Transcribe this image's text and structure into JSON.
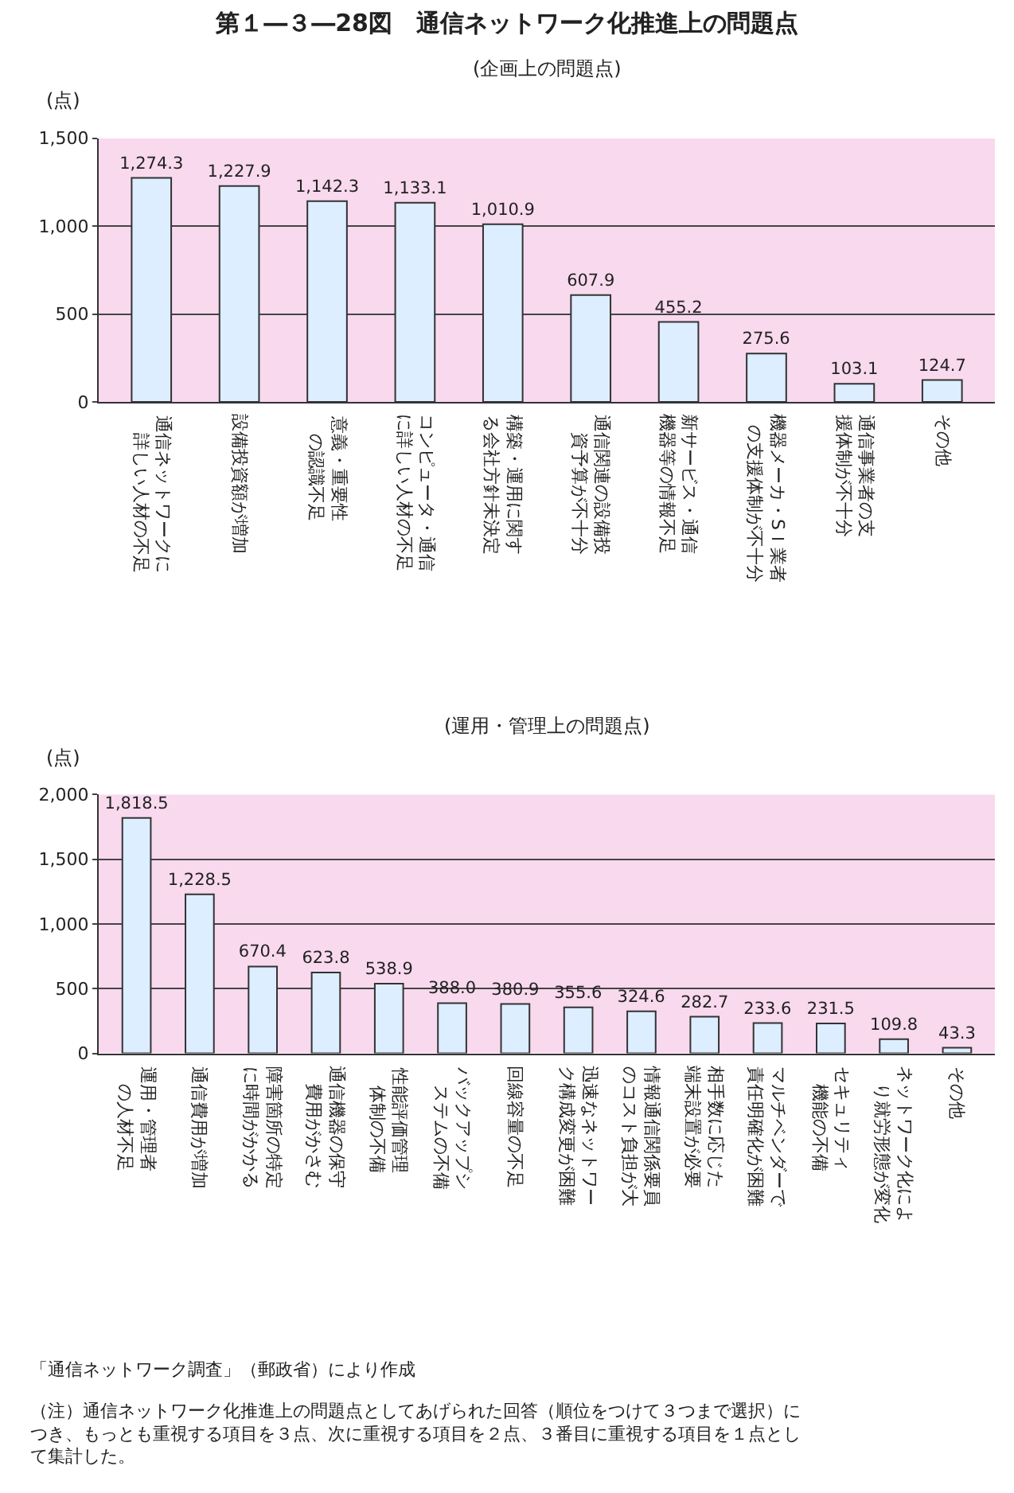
{
  "chart_data": [
    {
      "type": "bar",
      "title": "第１―３―28図　通信ネットワーク化推進上の問題点",
      "subtitle": "(企画上の問題点)",
      "ylabel": "(点)",
      "categories": [
        "通信ネットワークに詳しい人材の不足",
        "設備投資額が増加",
        "意義・重要性の認識不足",
        "コンピュータ・通信に詳しい人材の不足",
        "構築・運用に関する会社方針未決定",
        "通信関連の設備投資予算が不十分",
        "新サービス・通信機器等の情報不足",
        "機器メーカ・SＩ業者の支援体制が不十分",
        "通信事業者の支援体制が不十分",
        "その他"
      ],
      "values": [
        1274.3,
        1227.9,
        1142.3,
        1133.1,
        1010.9,
        607.9,
        455.2,
        275.6,
        103.1,
        124.7
      ],
      "value_labels": [
        "1,274.3",
        "1,227.9",
        "1,142.3",
        "1,133.1",
        "1,010.9",
        "607.9",
        "455.2",
        "275.6",
        "103.1",
        "124.7"
      ],
      "color": "#dceeff",
      "ylim": [
        0,
        1500
      ],
      "yticks": [
        0,
        500,
        {
          "value": 1000,
          "label": "1,000"
        },
        {
          "value": 1500,
          "label": "1,500"
        }
      ],
      "grid": "y",
      "bands": [
        {
          "axis": "y",
          "from": 0,
          "to": 1500,
          "color": "#f9d9ee"
        }
      ]
    },
    {
      "type": "bar",
      "title": "(運用・管理上の問題点)",
      "ylabel": "(点)",
      "categories": [
        "運用・管理者の人材不足",
        "通信費用が増加",
        "障害箇所の特定に時間がかかる",
        "通信機器の保守費用がかさむ",
        "性能評価管理体制の不備",
        "バックアップシステムの不備",
        "回線容量の不足",
        "迅速なネットワーク構成変更が困難",
        "情報通信関係要員のコスト負担が大",
        "相手数に応じた端末設置が必要",
        "マルチベンダーで責任明確化が困難",
        "セキュリティ機能の不備",
        "ネットワーク化により就労形態が変化",
        "その他"
      ],
      "values": [
        1818.5,
        1228.5,
        670.4,
        623.8,
        538.9,
        388.0,
        380.9,
        355.6,
        324.6,
        282.7,
        233.6,
        231.5,
        109.8,
        43.3
      ],
      "value_labels": [
        "1,818.5",
        "1,228.5",
        "670.4",
        "623.8",
        "538.9",
        "388.0",
        "380.9",
        "355.6",
        "324.6",
        "282.7",
        "233.6",
        "231.5",
        "109.8",
        "43.3"
      ],
      "color": "#dceeff",
      "ylim": [
        0,
        2000
      ],
      "yticks": [
        0,
        500,
        {
          "value": 1000,
          "label": "1,000"
        },
        {
          "value": 1500,
          "label": "1,500"
        },
        {
          "value": 2000,
          "label": "2,000"
        }
      ],
      "grid": "y",
      "bands": [
        {
          "axis": "y",
          "from": 0,
          "to": 2000,
          "color": "#f9d9ee"
        }
      ],
      "annotations": [
        "「通信ネットワーク調査」（郵政省）により作成",
        "（注）通信ネットワーク化推進上の問題点としてあげられた回答（順位をつけて３つまで選択）につき、もっとも重視する項目を３点、次に重視する項目を２点、３番目に重視する項目を１点として集計した。"
      ]
    }
  ]
}
